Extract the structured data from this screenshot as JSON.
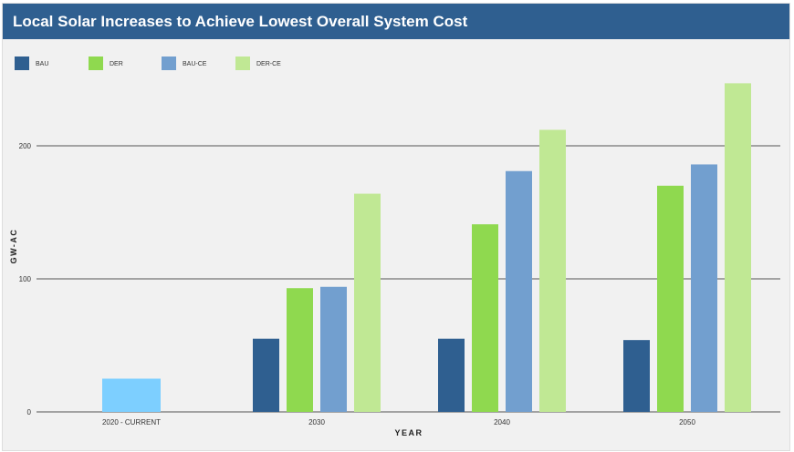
{
  "header": {
    "title": "Local Solar Increases to Achieve Lowest Overall System Cost"
  },
  "chart_data": {
    "type": "bar",
    "title": "Local Solar Increases to Achieve Lowest Overall System Cost",
    "xlabel": "YEAR",
    "ylabel": "GW-AC",
    "ylim": [
      0,
      250
    ],
    "yticks": [
      0,
      100,
      200
    ],
    "grid": true,
    "legend_position": "top-left",
    "categories": [
      "2020 - CURRENT",
      "2030",
      "2040",
      "2050"
    ],
    "current": {
      "category": "2020 - CURRENT",
      "value": 25,
      "color": "#7dcfff"
    },
    "series": [
      {
        "name": "BAU",
        "color": "#2f5f90",
        "values": [
          null,
          55,
          55,
          54
        ]
      },
      {
        "name": "DER",
        "color": "#8fd94f",
        "values": [
          null,
          93,
          141,
          170
        ]
      },
      {
        "name": "BAU-CE",
        "color": "#729fcf",
        "values": [
          null,
          94,
          181,
          186
        ]
      },
      {
        "name": "DER-CE",
        "color": "#c0e894",
        "values": [
          null,
          164,
          212,
          247
        ]
      }
    ]
  }
}
